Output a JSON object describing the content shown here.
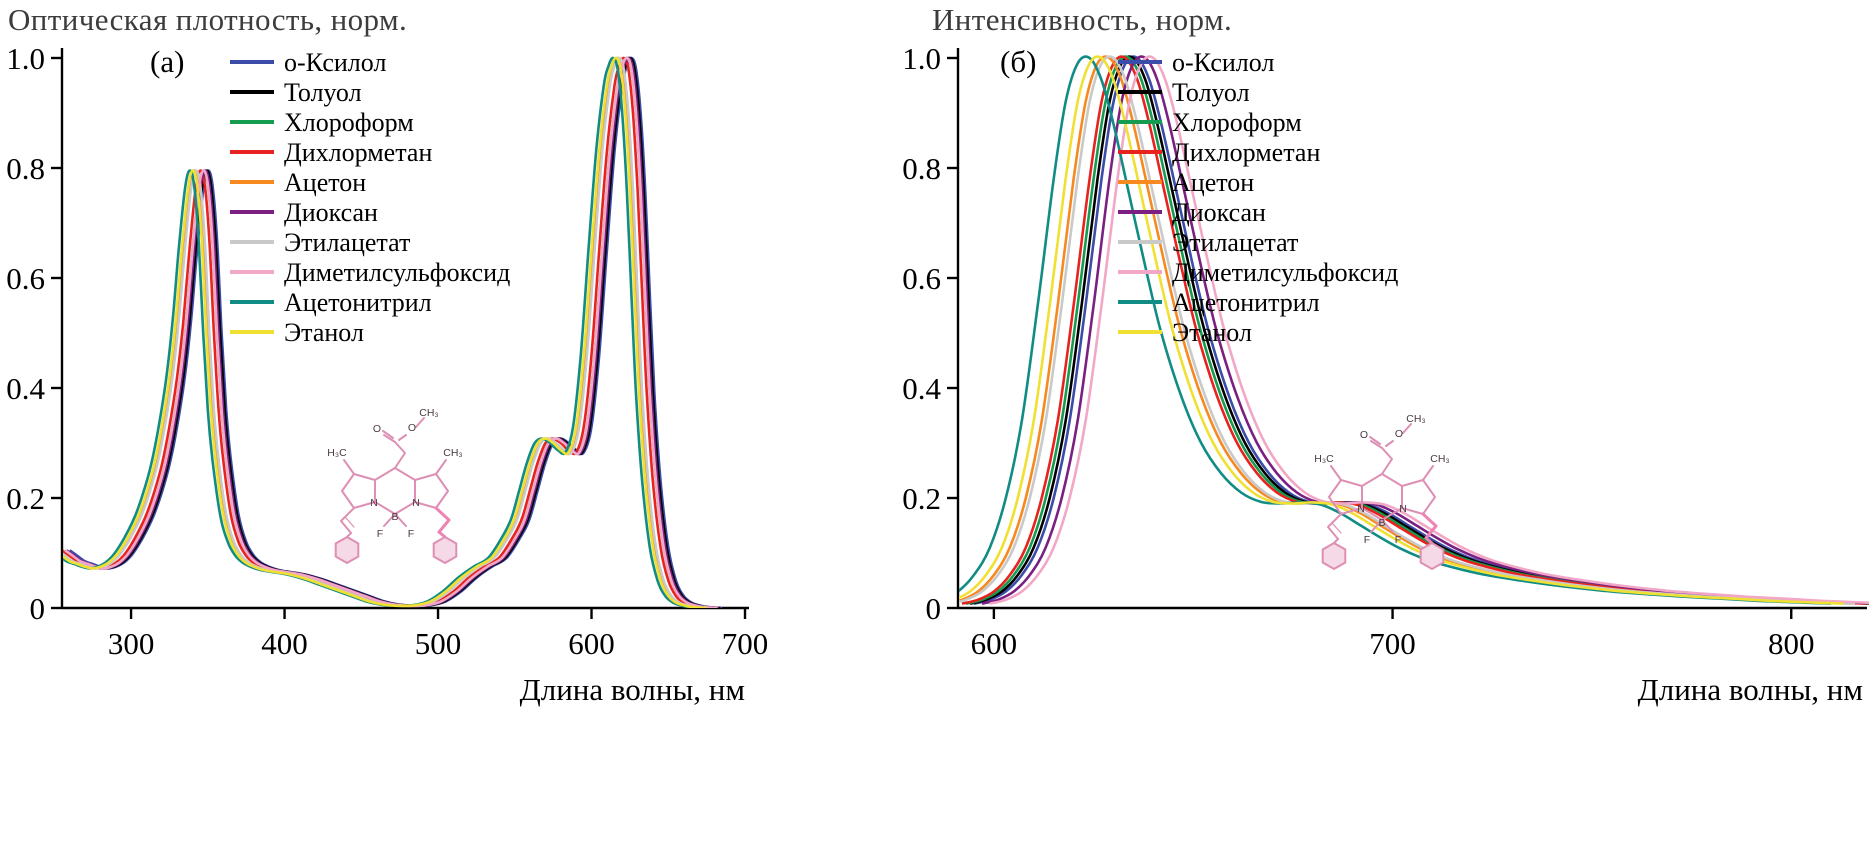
{
  "figure": {
    "background": "#ffffff"
  },
  "chart_data": [
    {
      "type": "line",
      "panel_label": "(а)",
      "title": "Оптическая плотность, норм.",
      "ylabel": "Оптическая плотность, норм.",
      "xlabel": "Длина волны, нм",
      "xlim": [
        255,
        700
      ],
      "xticks": [
        300,
        400,
        500,
        600,
        700
      ],
      "xtick_labels": [
        "300",
        "400",
        "500",
        "600",
        "700"
      ],
      "ylim": [
        0,
        1.0
      ],
      "yticks": [
        0,
        0.2,
        0.4,
        0.6,
        0.8,
        1.0
      ],
      "ytick_labels": [
        "0",
        "0.2",
        "0.4",
        "0.6",
        "0.8",
        "1.0"
      ],
      "grid": false,
      "legend_position": "upper-left-inside",
      "curve_model": "all solvent series share the base absorption curve, shifted along x by shift_nm",
      "base_curve": {
        "x": [
          255,
          260,
          265,
          270,
          275,
          280,
          285,
          290,
          295,
          300,
          305,
          310,
          315,
          320,
          325,
          330,
          334,
          338,
          342,
          345,
          348,
          351,
          354,
          357,
          360,
          365,
          370,
          375,
          380,
          385,
          390,
          395,
          400,
          410,
          420,
          430,
          440,
          450,
          460,
          470,
          480,
          490,
          500,
          510,
          520,
          530,
          540,
          550,
          555,
          560,
          565,
          570,
          575,
          580,
          585,
          590,
          595,
          600,
          605,
          610,
          615,
          618,
          621,
          624,
          627,
          630,
          633,
          636,
          640,
          645,
          650,
          655,
          660,
          665,
          670,
          680
        ],
        "y": [
          0.105,
          0.095,
          0.085,
          0.08,
          0.075,
          0.072,
          0.075,
          0.082,
          0.095,
          0.115,
          0.14,
          0.17,
          0.21,
          0.26,
          0.33,
          0.42,
          0.52,
          0.65,
          0.76,
          0.795,
          0.77,
          0.67,
          0.5,
          0.36,
          0.27,
          0.17,
          0.12,
          0.095,
          0.082,
          0.075,
          0.07,
          0.067,
          0.065,
          0.06,
          0.052,
          0.042,
          0.032,
          0.022,
          0.012,
          0.006,
          0.004,
          0.005,
          0.012,
          0.03,
          0.055,
          0.075,
          0.092,
          0.135,
          0.165,
          0.215,
          0.265,
          0.3,
          0.308,
          0.3,
          0.287,
          0.283,
          0.33,
          0.46,
          0.65,
          0.83,
          0.95,
          0.985,
          1.0,
          0.98,
          0.9,
          0.76,
          0.57,
          0.39,
          0.23,
          0.11,
          0.05,
          0.022,
          0.01,
          0.005,
          0.002,
          0
        ]
      },
      "series": [
        {
          "name": "о-Ксилол",
          "color": "#3b4da8",
          "shift_nm": 5
        },
        {
          "name": "Толуол",
          "color": "#000000",
          "shift_nm": 4,
          "xmin": 283
        },
        {
          "name": "Хлороформ",
          "color": "#169c50",
          "shift_nm": 2
        },
        {
          "name": "Дихлорметан",
          "color": "#e8231f",
          "shift_nm": 0
        },
        {
          "name": "Ацетон",
          "color": "#f6891f",
          "shift_nm": -4
        },
        {
          "name": "Диоксан",
          "color": "#7b2082",
          "shift_nm": 3
        },
        {
          "name": "Этилацетат",
          "color": "#c9c9c9",
          "shift_nm": -3
        },
        {
          "name": "Диметилсульфоксид",
          "color": "#f2a7c6",
          "shift_nm": 2
        },
        {
          "name": "Ацетонитрил",
          "color": "#108c85",
          "shift_nm": -7
        },
        {
          "name": "Этанол",
          "color": "#f0e032",
          "shift_nm": -5
        }
      ]
    },
    {
      "type": "line",
      "panel_label": "(б)",
      "title": "Интенсивность, норм.",
      "ylabel": "Интенсивность, норм.",
      "xlabel": "Длина волны, нм",
      "xlim": [
        591,
        818
      ],
      "xticks": [
        600,
        700,
        800
      ],
      "xtick_labels": [
        "600",
        "700",
        "800"
      ],
      "ylim": [
        0,
        1.0
      ],
      "yticks": [
        0,
        0.2,
        0.4,
        0.6,
        0.8,
        1.0
      ],
      "ytick_labels": [
        "0",
        "0.2",
        "0.4",
        "0.6",
        "0.8",
        "1.0"
      ],
      "grid": false,
      "legend_position": "upper-left-inside",
      "curve_model": "all solvent series share the base emission curve, shifted along x by shift_nm",
      "base_curve": {
        "x": [
          591,
          595,
          599,
          603,
          607,
          611,
          615,
          619,
          623,
          626,
          629,
          632,
          635,
          638,
          642,
          646,
          650,
          655,
          660,
          665,
          670,
          675,
          680,
          685,
          690,
          695,
          700,
          705,
          710,
          715,
          720,
          730,
          740,
          750,
          760,
          770,
          780,
          790,
          800,
          810,
          818
        ],
        "y": [
          0.008,
          0.015,
          0.03,
          0.06,
          0.11,
          0.2,
          0.34,
          0.55,
          0.78,
          0.92,
          0.99,
          1.0,
          0.96,
          0.88,
          0.75,
          0.62,
          0.5,
          0.385,
          0.3,
          0.245,
          0.21,
          0.193,
          0.19,
          0.192,
          0.188,
          0.172,
          0.15,
          0.128,
          0.108,
          0.092,
          0.08,
          0.062,
          0.05,
          0.04,
          0.032,
          0.026,
          0.021,
          0.017,
          0.013,
          0.01,
          0.008
        ]
      },
      "series": [
        {
          "name": "о-Ксилол",
          "color": "#3b4da8",
          "shift_nm": 4
        },
        {
          "name": "Толуол",
          "color": "#000000",
          "shift_nm": 3
        },
        {
          "name": "Хлороформ",
          "color": "#169c50",
          "shift_nm": 2
        },
        {
          "name": "Дихлорметан",
          "color": "#e8231f",
          "shift_nm": 1
        },
        {
          "name": "Ацетон",
          "color": "#f6891f",
          "shift_nm": -3
        },
        {
          "name": "Диоксан",
          "color": "#7b2082",
          "shift_nm": 6
        },
        {
          "name": "Этилацетат",
          "color": "#c9c9c9",
          "shift_nm": -2
        },
        {
          "name": "Диметилсульфоксид",
          "color": "#f2a7c6",
          "shift_nm": 8
        },
        {
          "name": "Ацетонитрил",
          "color": "#108c85",
          "shift_nm": -8
        },
        {
          "name": "Этанол",
          "color": "#f0e032",
          "shift_nm": -5
        }
      ]
    }
  ],
  "molecule": {
    "ch3_ester": "CH₃",
    "o_double": "O",
    "o_single": "O",
    "h3c_left": "H₃C",
    "ch3_right": "CH₃",
    "n_left": "N",
    "n_right": "N",
    "b": "B",
    "f_left": "F",
    "f_right": "F"
  }
}
